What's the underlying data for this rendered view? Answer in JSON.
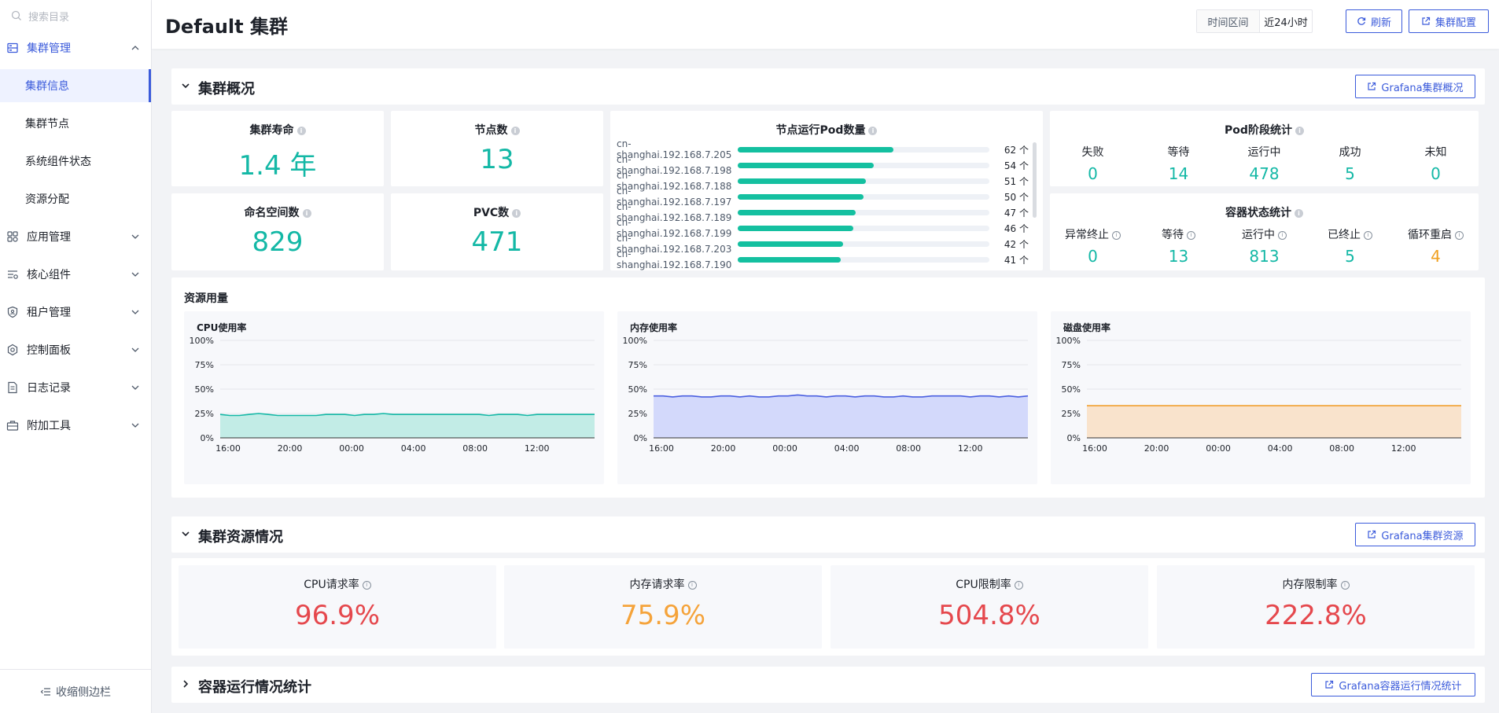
{
  "sidebar": {
    "search_placeholder": "搜索目录",
    "groups": [
      {
        "label": "集群管理",
        "icon": "server-icon",
        "expanded": true,
        "children": [
          {
            "label": "集群信息",
            "active": true
          },
          {
            "label": "集群节点"
          },
          {
            "label": "系统组件状态"
          },
          {
            "label": "资源分配"
          }
        ]
      },
      {
        "label": "应用管理",
        "icon": "apps-icon"
      },
      {
        "label": "核心组件",
        "icon": "components-icon"
      },
      {
        "label": "租户管理",
        "icon": "shield-icon"
      },
      {
        "label": "控制面板",
        "icon": "gear-icon"
      },
      {
        "label": "日志记录",
        "icon": "document-icon"
      },
      {
        "label": "附加工具",
        "icon": "toolbox-icon"
      }
    ],
    "collapse_label": "收缩侧边栏"
  },
  "header": {
    "title": "Default 集群",
    "time_label": "时间区间",
    "time_value": "近24小时",
    "refresh_label": "刷新",
    "config_label": "集群配置"
  },
  "overview": {
    "title": "集群概况",
    "grafana_label": "Grafana集群概况",
    "kpis": {
      "age": {
        "label": "集群寿命",
        "value": "1.4 年"
      },
      "nodes": {
        "label": "节点数",
        "value": "13"
      },
      "namespaces": {
        "label": "命名空间数",
        "value": "829"
      },
      "pvc": {
        "label": "PVC数",
        "value": "471"
      }
    },
    "pod_counts": {
      "title": "节点运行Pod数量",
      "max": 100,
      "rows": [
        {
          "node": "cn-shanghai.192.168.7.205",
          "count": 62,
          "label": "62 个"
        },
        {
          "node": "cn-shanghai.192.168.7.198",
          "count": 54,
          "label": "54 个"
        },
        {
          "node": "cn-shanghai.192.168.7.188",
          "count": 51,
          "label": "51 个"
        },
        {
          "node": "cn-shanghai.192.168.7.197",
          "count": 50,
          "label": "50 个"
        },
        {
          "node": "cn-shanghai.192.168.7.189",
          "count": 47,
          "label": "47 个"
        },
        {
          "node": "cn-shanghai.192.168.7.199",
          "count": 46,
          "label": "46 个"
        },
        {
          "node": "cn-shanghai.192.168.7.203",
          "count": 42,
          "label": "42 个"
        },
        {
          "node": "cn-shanghai.192.168.7.190",
          "count": 41,
          "label": "41 个"
        }
      ]
    },
    "pod_phase": {
      "title": "Pod阶段统计",
      "items": [
        {
          "label": "失败",
          "value": "0"
        },
        {
          "label": "等待",
          "value": "14"
        },
        {
          "label": "运行中",
          "value": "478"
        },
        {
          "label": "成功",
          "value": "5"
        },
        {
          "label": "未知",
          "value": "0"
        }
      ]
    },
    "container_state": {
      "title": "容器状态统计",
      "items": [
        {
          "label": "异常终止",
          "value": "0"
        },
        {
          "label": "等待",
          "value": "13"
        },
        {
          "label": "运行中",
          "value": "813"
        },
        {
          "label": "已终止",
          "value": "5"
        },
        {
          "label": "循环重启",
          "value": "4",
          "color": "#f0a020"
        }
      ]
    }
  },
  "usage": {
    "title": "资源用量"
  },
  "chart_data": [
    {
      "type": "area",
      "title": "CPU使用率",
      "x_ticks": [
        "16:00",
        "20:00",
        "00:00",
        "04:00",
        "08:00",
        "12:00"
      ],
      "y_ticks": [
        "0%",
        "25%",
        "50%",
        "75%",
        "100%"
      ],
      "ylim": [
        0,
        100
      ],
      "color": "#14b8a6",
      "fill": "#c2ece6",
      "values": [
        24,
        23,
        23,
        24,
        25,
        24,
        23,
        23,
        23,
        23,
        23,
        24,
        24,
        24,
        23,
        24,
        24,
        25,
        24,
        24,
        24,
        24,
        24,
        24,
        24,
        24,
        24,
        24,
        23,
        24,
        24,
        24,
        23,
        24,
        24,
        24,
        24,
        24,
        24,
        24
      ]
    },
    {
      "type": "area",
      "title": "内存使用率",
      "x_ticks": [
        "16:00",
        "20:00",
        "00:00",
        "04:00",
        "08:00",
        "12:00"
      ],
      "y_ticks": [
        "0%",
        "25%",
        "50%",
        "75%",
        "100%"
      ],
      "ylim": [
        0,
        100
      ],
      "color": "#4a5fe0",
      "fill": "#d3d9fb",
      "values": [
        43,
        43,
        42,
        43,
        43,
        42,
        42,
        43,
        43,
        42,
        43,
        42,
        42,
        43,
        43,
        44,
        43,
        43,
        42,
        43,
        43,
        42,
        43,
        43,
        42,
        42,
        43,
        42,
        42,
        43,
        43,
        43,
        43,
        42,
        43,
        43,
        42,
        43,
        42,
        43
      ]
    },
    {
      "type": "area",
      "title": "磁盘使用率",
      "x_ticks": [
        "16:00",
        "20:00",
        "00:00",
        "04:00",
        "08:00",
        "12:00"
      ],
      "y_ticks": [
        "0%",
        "25%",
        "50%",
        "75%",
        "100%"
      ],
      "ylim": [
        0,
        100
      ],
      "color": "#f0a030",
      "fill": "#f9e3cc",
      "values": [
        33,
        33,
        33,
        33,
        33,
        33,
        33,
        33,
        33,
        33,
        33,
        33,
        33,
        33,
        33,
        33,
        33,
        33,
        33,
        33,
        33,
        33,
        33,
        33,
        33,
        33,
        33,
        33,
        33,
        33,
        33,
        33,
        33,
        33,
        33,
        33,
        33,
        33,
        33,
        33
      ]
    }
  ],
  "resources": {
    "title": "集群资源情况",
    "grafana_label": "Grafana集群资源",
    "items": [
      {
        "label": "CPU请求率",
        "value": "96.9%",
        "color": "#e5484d"
      },
      {
        "label": "内存请求率",
        "value": "75.9%",
        "color": "#f5a33a"
      },
      {
        "label": "CPU限制率",
        "value": "504.8%",
        "color": "#e5484d"
      },
      {
        "label": "内存限制率",
        "value": "222.8%",
        "color": "#e5484d"
      }
    ]
  },
  "containers": {
    "title": "容器运行情况统计",
    "grafana_label": "Grafana容器运行情况统计"
  }
}
